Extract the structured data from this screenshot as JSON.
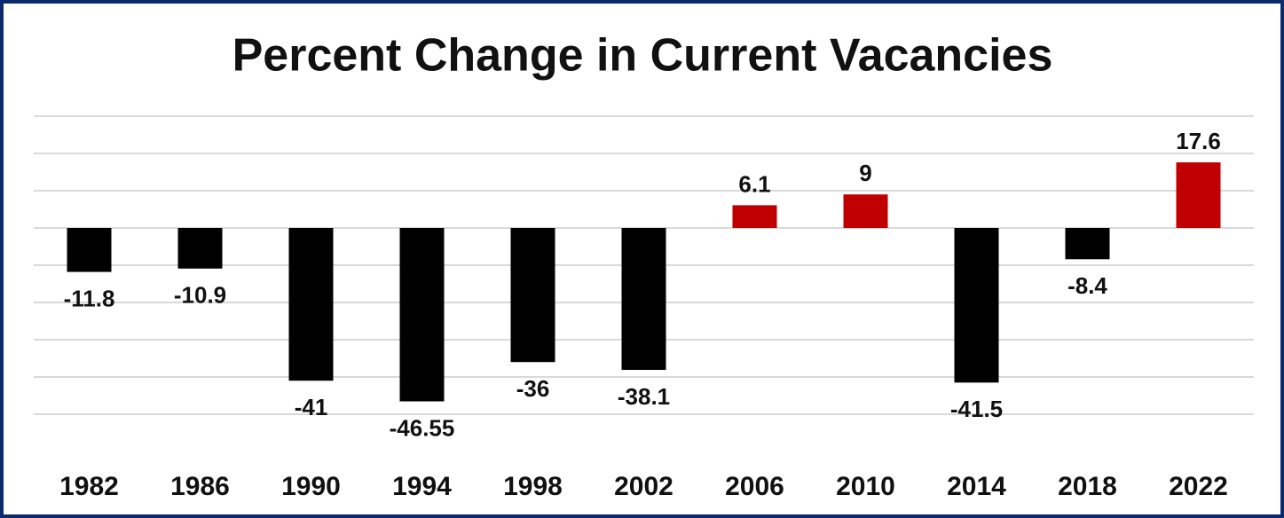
{
  "chart_data": {
    "type": "bar",
    "title": "Percent Change in Current Vacancies",
    "categories": [
      "1982",
      "1986",
      "1990",
      "1994",
      "1998",
      "2002",
      "2006",
      "2010",
      "2014",
      "2018",
      "2022"
    ],
    "values": [
      -11.8,
      -10.9,
      -41,
      -46.55,
      -36,
      -38.1,
      6.1,
      9,
      -41.5,
      -8.4,
      17.6
    ],
    "negative_color": "#000000",
    "positive_color": "#c00000",
    "ylim": [
      -50,
      30
    ],
    "yticks": [
      -50,
      -40,
      -30,
      -20,
      -10,
      0,
      10,
      20,
      30
    ],
    "grid": true
  }
}
